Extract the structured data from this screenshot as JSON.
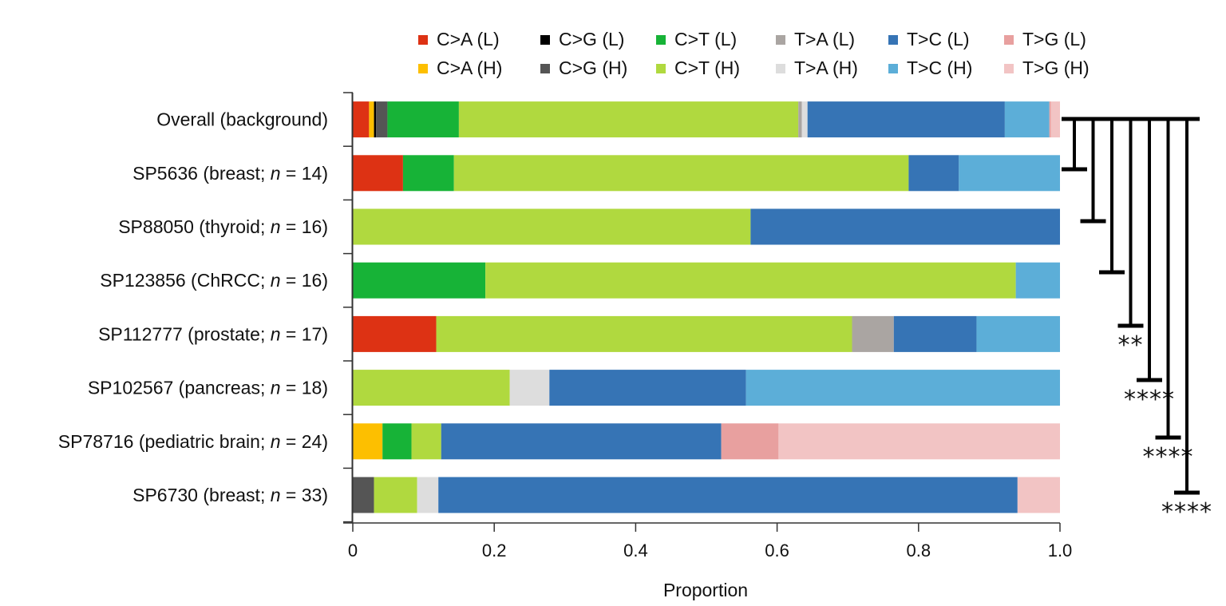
{
  "chart_data": {
    "type": "bar",
    "orientation": "horizontal",
    "stacked": true,
    "title": "",
    "xlabel": "Proportion",
    "ylabel": "",
    "xlim": [
      0,
      1.0
    ],
    "xticks": [
      0,
      0.2,
      0.4,
      0.6,
      0.8,
      1.0
    ],
    "xtick_labels": [
      "0",
      "0.2",
      "0.4",
      "0.6",
      "0.8",
      "1.0"
    ],
    "grid": false,
    "legend_position": "top",
    "categories": [
      {
        "label": "Overall (background)",
        "prefix": "Overall (background)",
        "n": null
      },
      {
        "label": "SP5636 (breast; n = 14)",
        "prefix": "SP5636 (breast; ",
        "n": "14"
      },
      {
        "label": "SP88050 (thyroid; n = 16)",
        "prefix": "SP88050 (thyroid; ",
        "n": "16"
      },
      {
        "label": "SP123856 (ChRCC; n = 16)",
        "prefix": "SP123856 (ChRCC; ",
        "n": "16"
      },
      {
        "label": "SP112777 (prostate; n = 17)",
        "prefix": "SP112777 (prostate; ",
        "n": "17"
      },
      {
        "label": "SP102567 (pancreas; n = 18)",
        "prefix": "SP102567 (pancreas; ",
        "n": "18"
      },
      {
        "label": "SP78716 (pediatric brain; n = 24)",
        "prefix": "SP78716 (pediatric brain; ",
        "n": "24"
      },
      {
        "label": "SP6730 (breast; n = 33)",
        "prefix": "SP6730 (breast; ",
        "n": "33"
      }
    ],
    "series": [
      {
        "name": "C>A (L)",
        "color": "#dd3214",
        "values": [
          0.023,
          0.071,
          0,
          0,
          0.118,
          0,
          0,
          0
        ]
      },
      {
        "name": "C>A (H)",
        "color": "#fdbf00",
        "values": [
          0.007,
          0,
          0,
          0,
          0,
          0,
          0.042,
          0
        ]
      },
      {
        "name": "C>G (L)",
        "color": "#000000",
        "values": [
          0.003,
          0,
          0,
          0,
          0,
          0,
          0,
          0
        ]
      },
      {
        "name": "C>G (H)",
        "color": "#555555",
        "values": [
          0.016,
          0,
          0,
          0,
          0,
          0,
          0,
          0.03
        ]
      },
      {
        "name": "C>T (L)",
        "color": "#17b337",
        "values": [
          0.101,
          0.072,
          0,
          0.1875,
          0,
          0,
          0.041,
          0
        ]
      },
      {
        "name": "C>T (H)",
        "color": "#b0d93f",
        "values": [
          0.48,
          0.643,
          0.5625,
          0.75,
          0.588,
          0.222,
          0.042,
          0.061
        ]
      },
      {
        "name": "T>A (L)",
        "color": "#aaa5a2",
        "values": [
          0.005,
          0,
          0,
          0,
          0.059,
          0,
          0,
          0
        ]
      },
      {
        "name": "T>A (H)",
        "color": "#dddddd",
        "values": [
          0.008,
          0,
          0,
          0,
          0,
          0.056,
          0,
          0.03
        ]
      },
      {
        "name": "T>C (L)",
        "color": "#3674b5",
        "values": [
          0.279,
          0.071,
          0.4375,
          0,
          0.117,
          0.278,
          0.396,
          0.819
        ]
      },
      {
        "name": "T>C (H)",
        "color": "#5caed8",
        "values": [
          0.063,
          0.143,
          0,
          0.0625,
          0.118,
          0.444,
          0,
          0
        ]
      },
      {
        "name": "T>G (L)",
        "color": "#e8a09f",
        "values": [
          0.002,
          0,
          0,
          0,
          0,
          0,
          0.081,
          0
        ]
      },
      {
        "name": "T>G (H)",
        "color": "#f2c4c4",
        "values": [
          0.013,
          0,
          0,
          0,
          0,
          0,
          0.398,
          0.06
        ]
      }
    ],
    "legend": {
      "columns": [
        [
          "C>A (L)",
          "C>A (H)"
        ],
        [
          "C>G (L)",
          "C>G (H)"
        ],
        [
          "C>T (L)",
          "C>T (H)"
        ],
        [
          "T>A (L)",
          "T>A (H)"
        ],
        [
          "T>C (L)",
          "T>C (H)"
        ],
        [
          "T>G (L)",
          "T>G (H)"
        ]
      ]
    },
    "annotations": {
      "comparison_reference": "Overall (background)",
      "comparisons": [
        {
          "target": "SP5636 (breast; n = 14)",
          "label": ""
        },
        {
          "target": "SP88050 (thyroid; n = 16)",
          "label": ""
        },
        {
          "target": "SP123856 (ChRCC; n = 16)",
          "label": ""
        },
        {
          "target": "SP112777 (prostate; n = 17)",
          "label": "**"
        },
        {
          "target": "SP102567 (pancreas; n = 18)",
          "label": "****"
        },
        {
          "target": "SP78716 (pediatric brain; n = 24)",
          "label": "****"
        },
        {
          "target": "SP6730 (breast; n = 33)",
          "label": "****"
        }
      ]
    }
  },
  "text": {
    "n_symbol": "n",
    "equals": " = ",
    "close_paren": ")"
  }
}
